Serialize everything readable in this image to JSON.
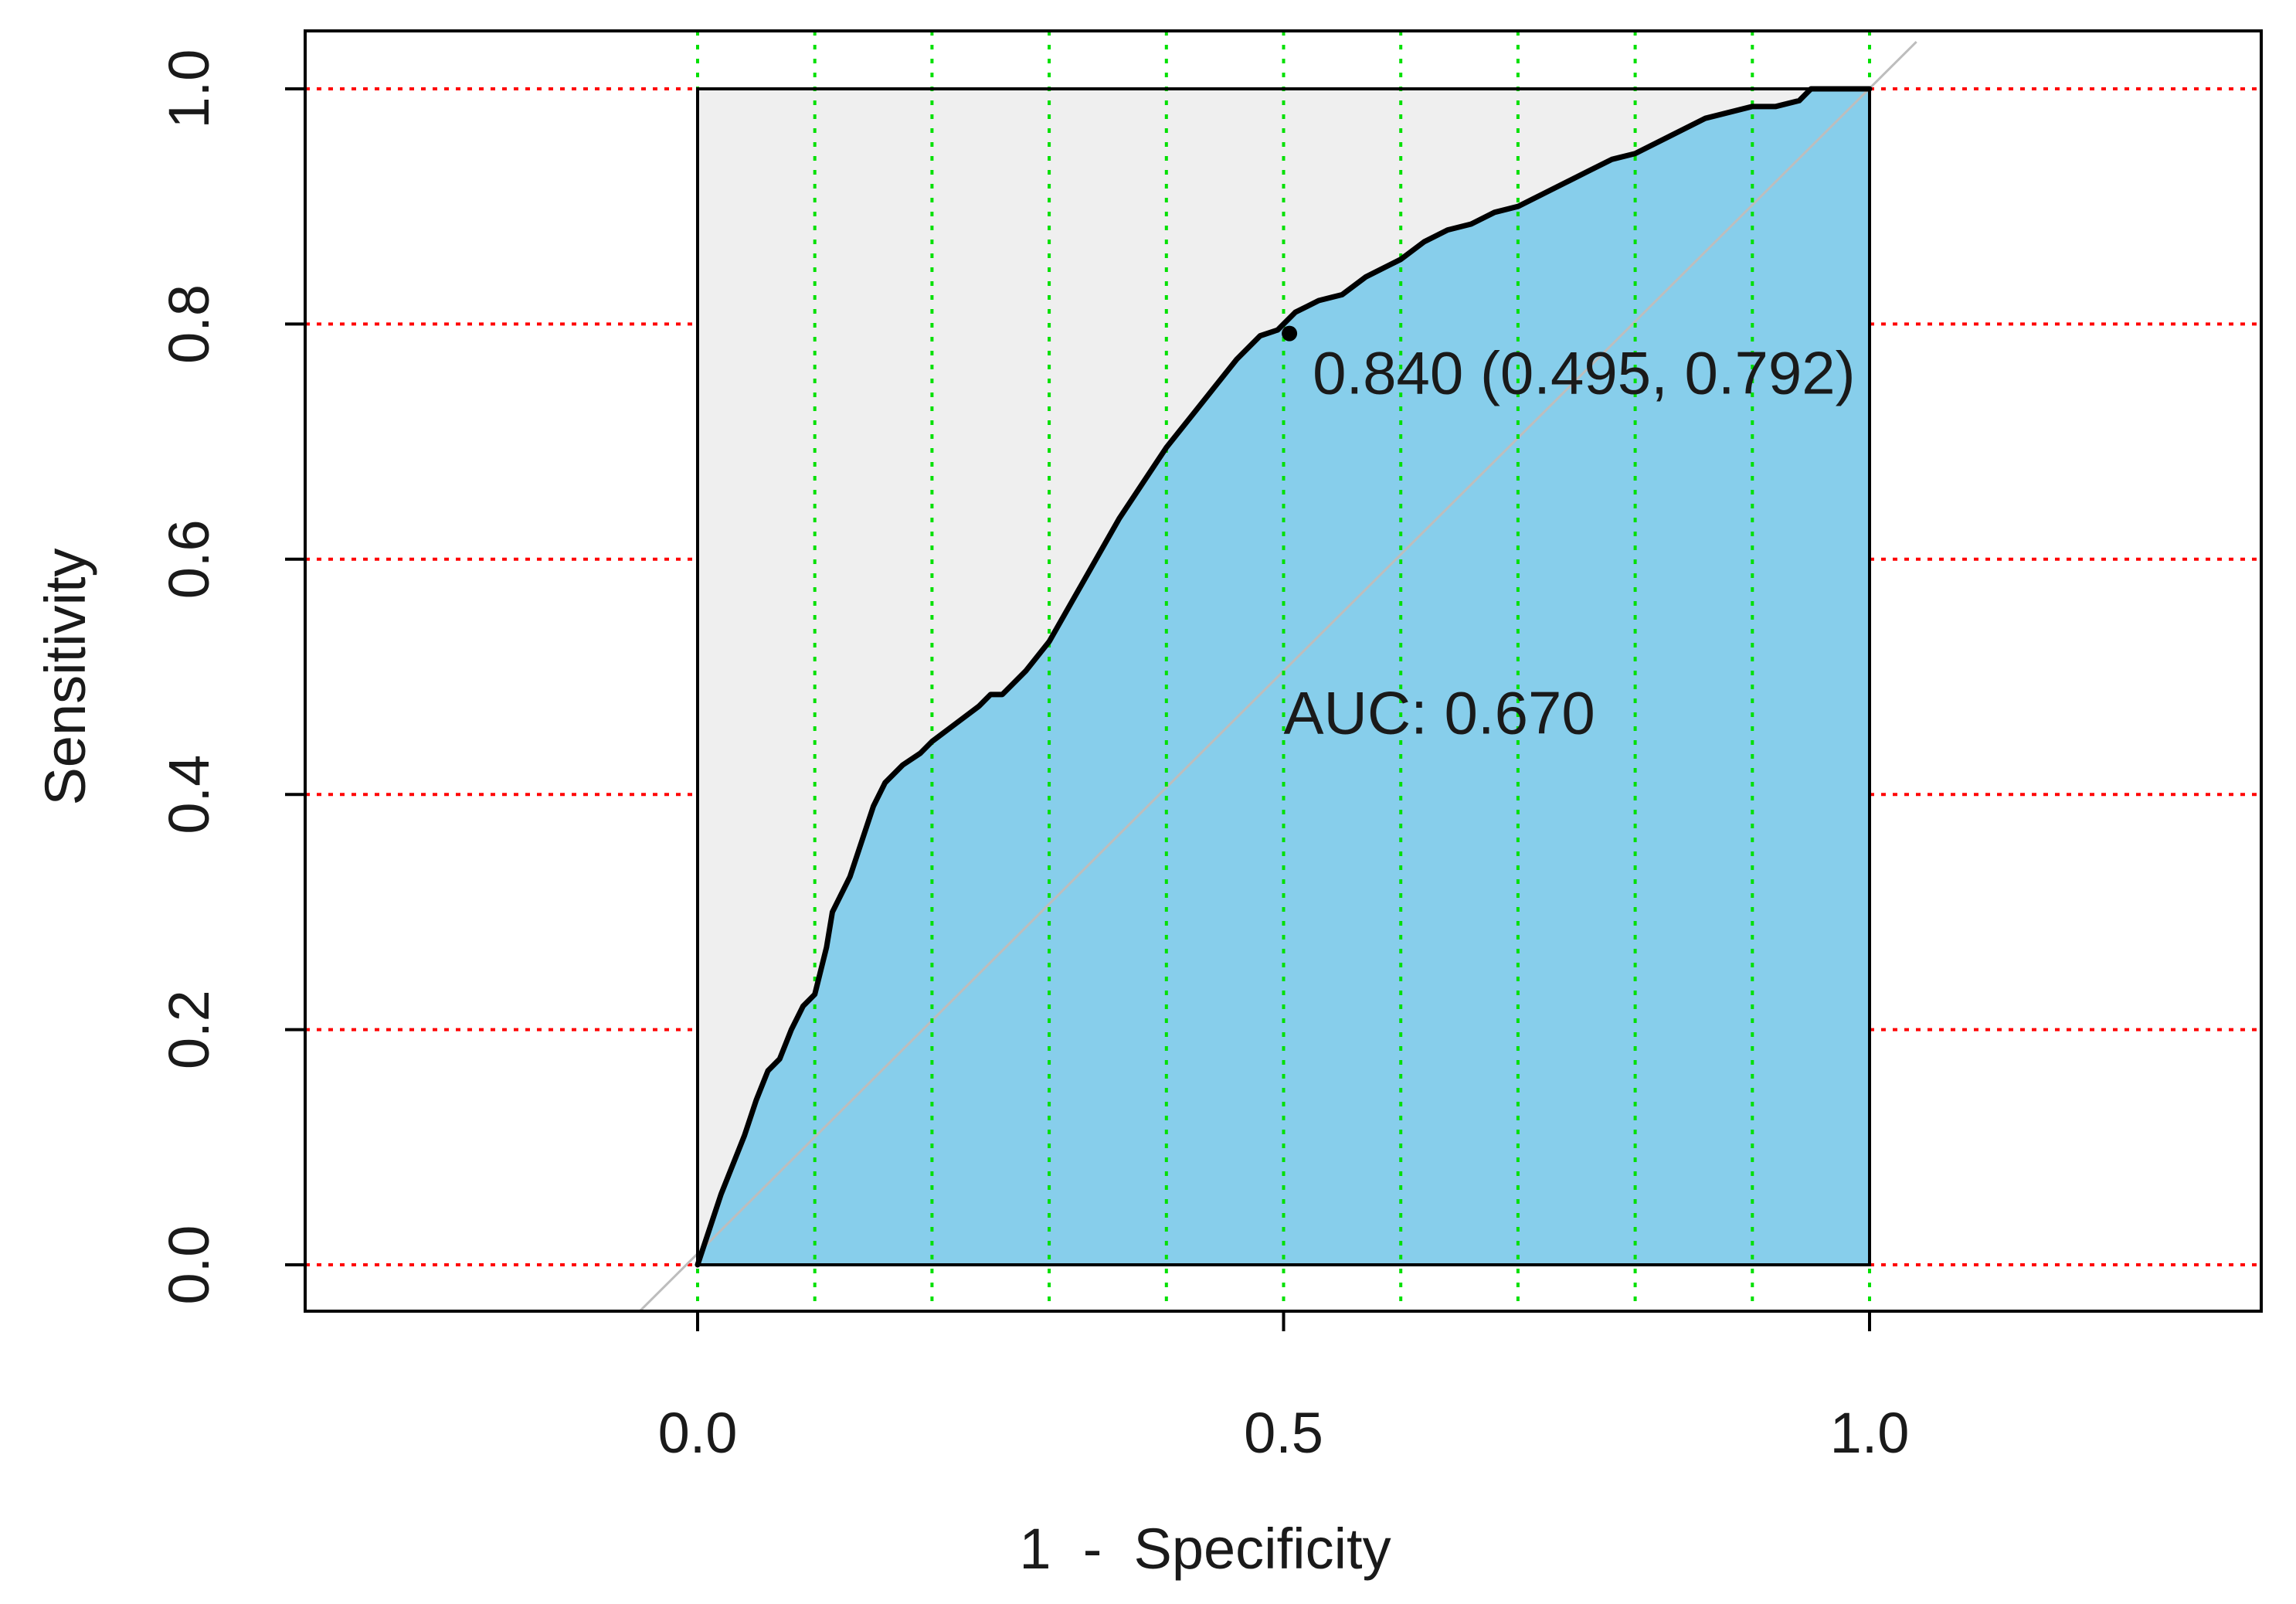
{
  "chart_data": {
    "type": "line",
    "title": "",
    "xlabel": "1  -  Specificity",
    "ylabel": "Sensitivity",
    "xlim": [
      -0.34,
      1.34
    ],
    "ylim": [
      -0.04,
      1.04
    ],
    "x_ticks": [
      "0.0",
      "0.5",
      "1.0"
    ],
    "y_ticks": [
      "0.0",
      "0.2",
      "0.4",
      "0.6",
      "0.8",
      "1.0"
    ],
    "grid": true,
    "grid_x": [
      0,
      0.1,
      0.2,
      0.3,
      0.4,
      0.5,
      0.6,
      0.7,
      0.8,
      0.9,
      1.0
    ],
    "grid_y": [
      0,
      0.2,
      0.4,
      0.6,
      0.8,
      1.0
    ],
    "series": [
      {
        "x": [
          0,
          0.01,
          0.02,
          0.03,
          0.04,
          0.05,
          0.06,
          0.07,
          0.08,
          0.085,
          0.09,
          0.1,
          0.11,
          0.115,
          0.12,
          0.125,
          0.13,
          0.14,
          0.15,
          0.16,
          0.165,
          0.17,
          0.175,
          0.19,
          0.2,
          0.22,
          0.24,
          0.25,
          0.26,
          0.28,
          0.3,
          0.32,
          0.34,
          0.36,
          0.38,
          0.4,
          0.42,
          0.44,
          0.46,
          0.48,
          0.495,
          0.5,
          0.51,
          0.52,
          0.53,
          0.55,
          0.57,
          0.59,
          0.6,
          0.62,
          0.64,
          0.66,
          0.68,
          0.7,
          0.72,
          0.74,
          0.76,
          0.78,
          0.8,
          0.82,
          0.84,
          0.86,
          0.88,
          0.9,
          0.92,
          0.94,
          0.95,
          0.96,
          0.97,
          1.0
        ],
        "y": [
          0,
          0.03,
          0.06,
          0.085,
          0.11,
          0.14,
          0.165,
          0.175,
          0.2,
          0.21,
          0.22,
          0.23,
          0.27,
          0.3,
          0.31,
          0.32,
          0.33,
          0.36,
          0.39,
          0.41,
          0.415,
          0.42,
          0.425,
          0.435,
          0.445,
          0.46,
          0.475,
          0.485,
          0.485,
          0.505,
          0.53,
          0.565,
          0.6,
          0.635,
          0.665,
          0.695,
          0.72,
          0.745,
          0.77,
          0.79,
          0.795,
          0.8,
          0.81,
          0.815,
          0.82,
          0.825,
          0.84,
          0.85,
          0.855,
          0.87,
          0.88,
          0.885,
          0.895,
          0.9,
          0.91,
          0.92,
          0.93,
          0.94,
          0.945,
          0.955,
          0.965,
          0.975,
          0.98,
          0.985,
          0.985,
          0.99,
          1.0,
          1.0,
          1.0,
          1.0
        ]
      }
    ],
    "diagonal": [
      [
        -0.05,
        -0.04
      ],
      [
        1.04,
        1.04
      ]
    ],
    "auc_label": "AUC: 0.670",
    "auc_label_pos": [
      0.5,
      0.47
    ],
    "threshold_point": {
      "x": 0.505,
      "y": 0.792
    },
    "threshold_label": "0.840 (0.495, 0.792)",
    "colors": {
      "auc_fill": "#87ceeb",
      "plot_bg": "#efefef",
      "curve": "#000000",
      "diagonal": "#bdbdbd",
      "grid_y": "#ff0000",
      "grid_x": "#00e000"
    }
  }
}
